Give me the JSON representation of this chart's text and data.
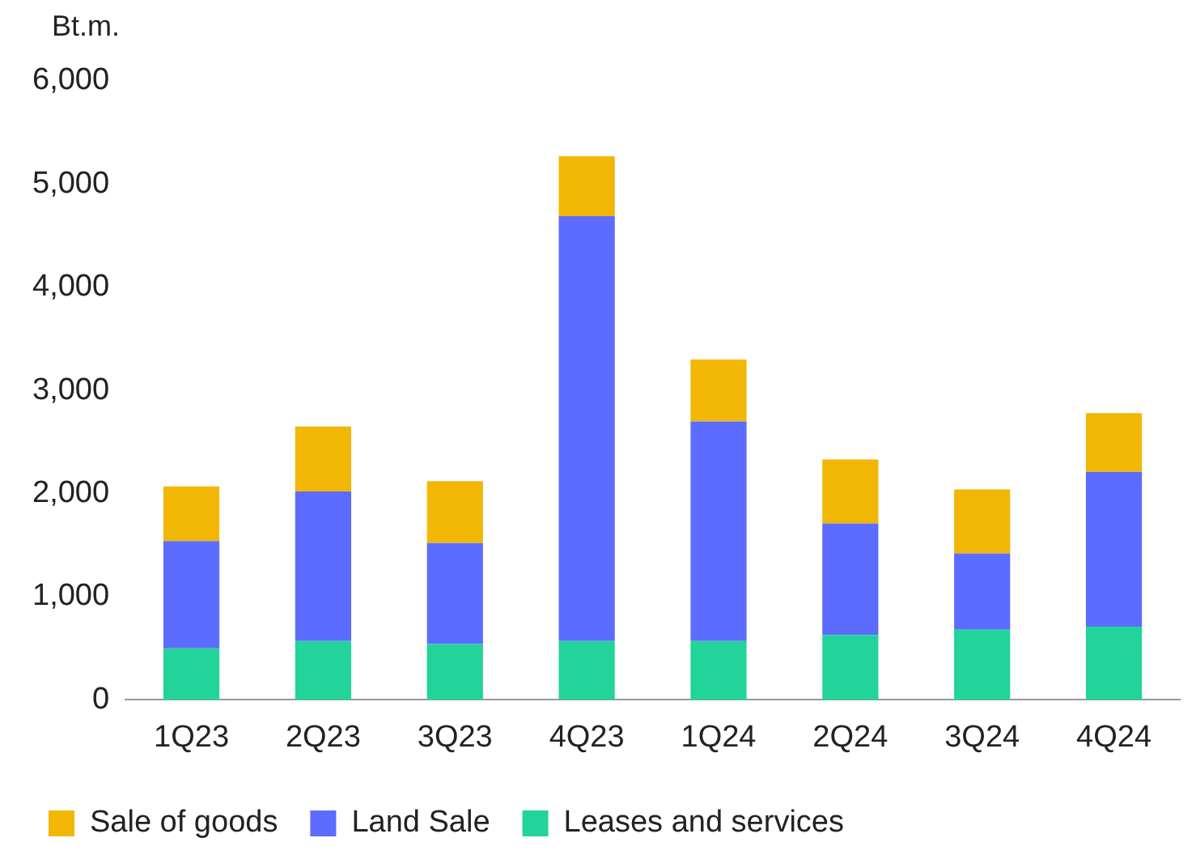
{
  "chart_data": {
    "type": "bar",
    "ylabel": "Bt.m.",
    "categories": [
      "1Q23",
      "2Q23",
      "3Q23",
      "4Q23",
      "1Q24",
      "2Q24",
      "3Q24",
      "4Q24"
    ],
    "series": [
      {
        "name": "Leases and services",
        "color": "#22d39a",
        "values": [
          500,
          570,
          540,
          570,
          570,
          630,
          680,
          710
        ]
      },
      {
        "name": "Land Sale",
        "color": "#5b6cff",
        "values": [
          1040,
          1450,
          980,
          4120,
          2130,
          1080,
          740,
          1500
        ]
      },
      {
        "name": "Sale of goods",
        "color": "#f2b705",
        "values": [
          530,
          630,
          600,
          580,
          600,
          620,
          620,
          570
        ]
      }
    ],
    "stacked": true,
    "ylim": [
      0,
      6000
    ],
    "yticks": [
      0,
      {
        "value": 1000,
        "label": "1,000"
      },
      {
        "value": 2000,
        "label": "2,000"
      },
      {
        "value": 3000,
        "label": "3,000"
      },
      {
        "value": 4000,
        "label": "4,000"
      },
      {
        "value": 5000,
        "label": "5,000"
      },
      {
        "value": 6000,
        "label": "6,000"
      }
    ],
    "grid": false,
    "legend": "bottom"
  }
}
